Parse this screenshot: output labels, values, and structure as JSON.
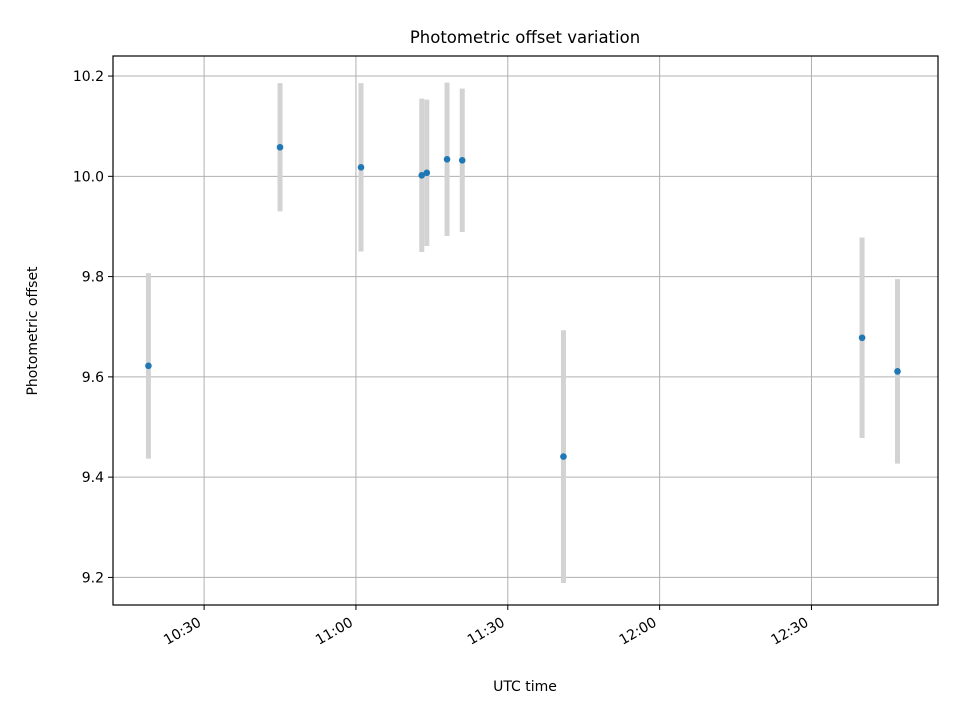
{
  "chart_data": {
    "type": "scatter",
    "title": "Photometric offset variation",
    "xlabel": "UTC time",
    "ylabel": "Photometric offset",
    "x_ticks": [
      "10:30",
      "11:00",
      "11:30",
      "12:00",
      "12:30"
    ],
    "y_ticks": [
      "9.2",
      "9.4",
      "9.6",
      "9.8",
      "10.0",
      "10.2"
    ],
    "xlim": [
      "10:12",
      "12:55"
    ],
    "ylim": [
      9.145,
      10.24
    ],
    "grid": true,
    "points": [
      {
        "x": "10:19",
        "y": 9.622,
        "err": 0.185
      },
      {
        "x": "10:45",
        "y": 10.058,
        "err": 0.128
      },
      {
        "x": "11:01",
        "y": 10.018,
        "err": 0.168
      },
      {
        "x": "11:13",
        "y": 10.002,
        "err": 0.153
      },
      {
        "x": "11:14",
        "y": 10.007,
        "err": 0.146
      },
      {
        "x": "11:18",
        "y": 10.034,
        "err": 0.153
      },
      {
        "x": "11:21",
        "y": 10.032,
        "err": 0.143
      },
      {
        "x": "11:41",
        "y": 9.441,
        "err": 0.252
      },
      {
        "x": "12:40",
        "y": 9.678,
        "err": 0.2
      },
      {
        "x": "12:47",
        "y": 9.611,
        "err": 0.184
      }
    ],
    "colors": {
      "marker": "#1f77b4",
      "errorbar": "#d3d3d3",
      "grid": "#b0b0b0"
    }
  }
}
